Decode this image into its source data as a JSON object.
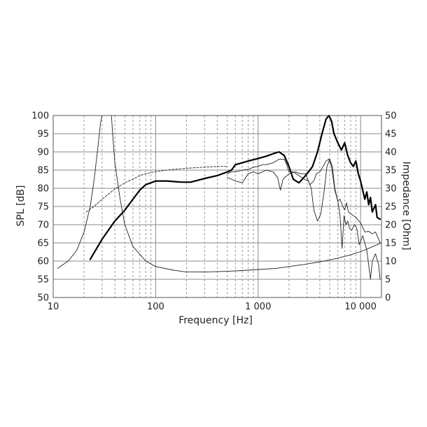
{
  "chart_data": {
    "type": "line",
    "title": "",
    "xlabel": "Frequency [Hz]",
    "ylabel_left": "SPL [dB]",
    "ylabel_right": "Impedance [Ohm]",
    "x_scale": "log",
    "xlim": [
      10,
      16000
    ],
    "ylim_left": [
      50,
      100
    ],
    "ylim_right": [
      0,
      50
    ],
    "grid": true,
    "x_ticks": [
      {
        "value": 10,
        "label": "10"
      },
      {
        "value": 100,
        "label": "100"
      },
      {
        "value": 1000,
        "label": "1 000"
      },
      {
        "value": 10000,
        "label": "10 000"
      }
    ],
    "y_ticks_left": [
      {
        "value": 50,
        "label": "50"
      },
      {
        "value": 55,
        "label": "55"
      },
      {
        "value": 60,
        "label": "60"
      },
      {
        "value": 65,
        "label": "65"
      },
      {
        "value": 70,
        "label": "70"
      },
      {
        "value": 75,
        "label": "75"
      },
      {
        "value": 80,
        "label": "80"
      },
      {
        "value": 85,
        "label": "85"
      },
      {
        "value": 90,
        "label": "90"
      },
      {
        "value": 95,
        "label": "95"
      },
      {
        "value": 100,
        "label": "100"
      }
    ],
    "y_ticks_right": [
      {
        "value": 0,
        "label": "0"
      },
      {
        "value": 5,
        "label": "5"
      },
      {
        "value": 10,
        "label": "10"
      },
      {
        "value": 15,
        "label": "15"
      },
      {
        "value": 20,
        "label": "20"
      },
      {
        "value": 25,
        "label": "25"
      },
      {
        "value": 30,
        "label": "30"
      },
      {
        "value": 35,
        "label": "35"
      },
      {
        "value": 40,
        "label": "40"
      },
      {
        "value": 45,
        "label": "45"
      },
      {
        "value": 50,
        "label": "50"
      }
    ],
    "series": [
      {
        "axis": "left",
        "style": "thick",
        "x": [
          23,
          30,
          40,
          50,
          60,
          70,
          80,
          100,
          130,
          180,
          220,
          300,
          400,
          500,
          550,
          600,
          700,
          800,
          1000,
          1200,
          1400,
          1600,
          1800,
          2000,
          2200,
          2500,
          2800,
          3100,
          3400,
          3800,
          4200,
          4600,
          4900,
          5200,
          5500,
          6000,
          6500,
          7000,
          7500,
          8000,
          8500,
          9000,
          9500,
          10000,
          11000,
          11500,
          12000,
          12500,
          13000,
          14000,
          14500,
          15500
        ],
        "y": [
          60.5,
          66,
          71,
          74,
          77,
          79.5,
          81,
          82,
          82,
          81.7,
          81.7,
          82.7,
          83.5,
          84.5,
          85,
          86.5,
          87,
          87.5,
          88.2,
          88.8,
          89.5,
          90,
          89,
          86,
          82.5,
          81.5,
          83,
          84.5,
          86,
          90,
          95,
          99,
          100,
          98.5,
          95,
          92.5,
          90.5,
          92.5,
          89,
          87,
          86,
          87.5,
          84,
          82,
          77,
          79,
          75.5,
          77.5,
          73.5,
          75.5,
          72,
          71.5
        ]
      },
      {
        "axis": "left",
        "style": "thin",
        "x": [
          500,
          550,
          600,
          700,
          800,
          900,
          1000,
          1100,
          1200,
          1400,
          1600,
          1800,
          1900,
          2000,
          2200,
          2500,
          2800,
          3100,
          3300,
          3500,
          3800,
          4100,
          4400,
          4700,
          5000,
          5300,
          5600,
          6000,
          6300,
          6600,
          7000,
          7300,
          7600,
          8000,
          8500,
          9000,
          10000,
          11000,
          12000,
          13000,
          14000,
          15000,
          15500
        ],
        "y": [
          84,
          84.5,
          84.5,
          85,
          85.2,
          85.8,
          86,
          86.5,
          86.5,
          87,
          88,
          88,
          86.5,
          84.5,
          84.5,
          83.5,
          82.5,
          82,
          80,
          74,
          71,
          73,
          79,
          86,
          88,
          86,
          80,
          76.5,
          77,
          75.5,
          74,
          76,
          73.5,
          73,
          72.5,
          72,
          70.5,
          68,
          68.2,
          67.5,
          68,
          66,
          65
        ]
      },
      {
        "axis": "left",
        "style": "thin",
        "x": [
          500,
          550,
          600,
          700,
          800,
          900,
          1000,
          1100,
          1200,
          1400,
          1550,
          1650,
          1750,
          2000,
          2300,
          2600,
          2900,
          3200,
          3500,
          3700,
          4000,
          4300,
          4600,
          4900,
          5200,
          5600,
          6000,
          6300,
          6600,
          6900,
          7200,
          7500,
          7800,
          8200,
          8700,
          9200,
          9700,
          10500,
          11500,
          12500,
          13000,
          14000,
          15000,
          15500
        ],
        "y": [
          83,
          82.5,
          82,
          81.5,
          84,
          84.5,
          84,
          84.5,
          85,
          84.5,
          83,
          79.5,
          82.5,
          84,
          84.5,
          84,
          84,
          81,
          82,
          84,
          84.5,
          86,
          87.5,
          88,
          86,
          79.5,
          76.5,
          72.5,
          63.5,
          72.5,
          70,
          71,
          69,
          68.5,
          70,
          69,
          64.5,
          67,
          63,
          55,
          60,
          62,
          59,
          55
        ]
      },
      {
        "axis": "left",
        "style": "dashed",
        "x": [
          21,
          25,
          30,
          40,
          50,
          60,
          70,
          80,
          100,
          150,
          200,
          300,
          400,
          500
        ],
        "y": [
          73.5,
          75,
          77,
          79.8,
          81.5,
          82.5,
          83.5,
          84,
          84.6,
          85.2,
          85.5,
          85.8,
          86,
          86
        ]
      },
      {
        "axis": "right",
        "style": "thin",
        "x": [
          11,
          14,
          17,
          20,
          23,
          25,
          27,
          29,
          30,
          31,
          37,
          38,
          40,
          45,
          50,
          60,
          80,
          100,
          150,
          200,
          300,
          500,
          700,
          1000,
          1500,
          2000,
          3000,
          4000,
          5000,
          6000,
          7000,
          8000,
          9000,
          10000,
          12000,
          14000,
          16000
        ],
        "y": [
          8,
          10,
          13,
          18,
          25,
          32,
          40,
          48,
          50,
          50,
          50,
          45,
          37,
          27,
          20,
          14,
          10,
          8.5,
          7.5,
          7,
          7,
          7.2,
          7.4,
          7.7,
          8,
          8.5,
          9.2,
          9.8,
          10.3,
          10.8,
          11.3,
          11.7,
          12.2,
          12.6,
          13.5,
          14.3,
          15
        ]
      }
    ]
  }
}
